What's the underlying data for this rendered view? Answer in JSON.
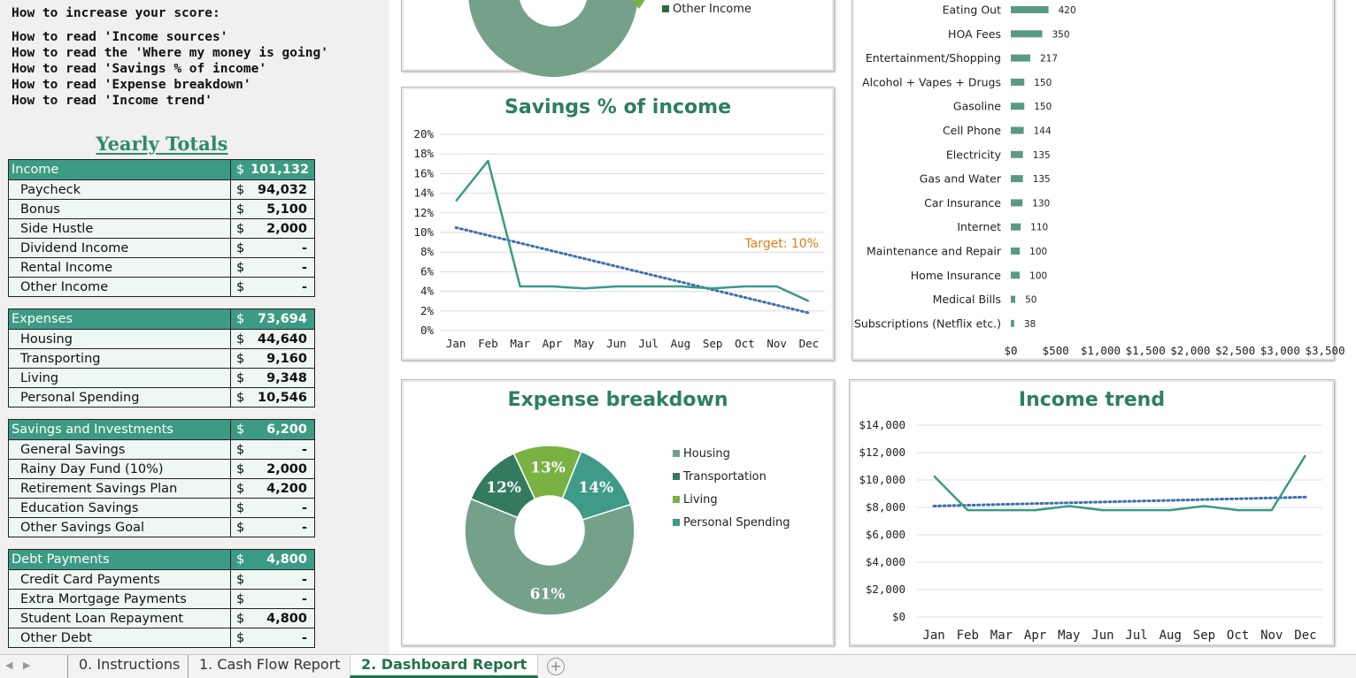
{
  "help_links": {
    "heading": "How to increase your score:",
    "items": [
      "How to read 'Income sources'",
      "How to read the 'Where my money is going'",
      "How to read 'Savings % of income'",
      "How to read 'Expense breakdown'",
      "How to read 'Income trend'"
    ]
  },
  "yearly_totals": {
    "title": "Yearly Totals",
    "sections": [
      {
        "name": "Income",
        "total": "101,132",
        "rows": [
          {
            "label": "Paycheck",
            "value": "94,032"
          },
          {
            "label": "Bonus",
            "value": "5,100"
          },
          {
            "label": "Side Hustle",
            "value": "2,000"
          },
          {
            "label": "Dividend Income",
            "value": "-"
          },
          {
            "label": "Rental Income",
            "value": "-"
          },
          {
            "label": "Other Income",
            "value": "-"
          }
        ]
      },
      {
        "name": "Expenses",
        "total": "73,694",
        "rows": [
          {
            "label": "Housing",
            "value": "44,640"
          },
          {
            "label": "Transporting",
            "value": "9,160"
          },
          {
            "label": "Living",
            "value": "9,348"
          },
          {
            "label": "Personal Spending",
            "value": "10,546"
          }
        ]
      },
      {
        "name": "Savings and Investments",
        "total": "6,200",
        "rows": [
          {
            "label": "General Savings",
            "value": "-"
          },
          {
            "label": "Rainy Day Fund (10%)",
            "value": "2,000"
          },
          {
            "label": "Retirement Savings Plan",
            "value": "4,200"
          },
          {
            "label": "Education Savings",
            "value": "-"
          },
          {
            "label": "Other Savings Goal",
            "value": "-"
          }
        ]
      },
      {
        "name": "Debt Payments",
        "total": "4,800",
        "rows": [
          {
            "label": "Credit Card Payments",
            "value": "-"
          },
          {
            "label": "Extra Mortgage Payments",
            "value": "-"
          },
          {
            "label": "Student Loan Repayment",
            "value": "4,800"
          },
          {
            "label": "Other Debt",
            "value": "-"
          }
        ]
      }
    ],
    "currency_symbol": "$"
  },
  "income_sources_partial": {
    "legend_visible": "Other Income"
  },
  "colors": {
    "housing": "#75a18b",
    "transportation": "#347a5e",
    "living": "#7ab143",
    "personal": "#3f9a87",
    "line": "#3a9a86",
    "trend": "#3e6fb0",
    "target": "#e07b1f",
    "bar": "#5a9a83"
  },
  "tabs": {
    "items": [
      "0. Instructions",
      "1. Cash Flow Report",
      "2. Dashboard Report"
    ],
    "active": "2. Dashboard Report"
  },
  "chart_data": [
    {
      "type": "donut",
      "title": "",
      "note": "partially visible (cropped at top)",
      "legend": [
        "Other Income"
      ]
    },
    {
      "type": "line",
      "title": "Savings % of income",
      "categories": [
        "Jan",
        "Feb",
        "Mar",
        "Apr",
        "May",
        "Jun",
        "Jul",
        "Aug",
        "Sep",
        "Oct",
        "Nov",
        "Dec"
      ],
      "series": [
        {
          "values": [
            13.2,
            17.3,
            4.5,
            4.5,
            4.3,
            4.5,
            4.5,
            4.5,
            4.3,
            4.5,
            4.5,
            3.0
          ]
        }
      ],
      "trendline": {
        "start": 10.5,
        "end": 1.8
      },
      "annotation": "Target: 10%",
      "y_ticks": [
        "0%",
        "2%",
        "4%",
        "6%",
        "8%",
        "10%",
        "12%",
        "14%",
        "16%",
        "18%",
        "20%"
      ],
      "ylim": [
        0,
        20
      ]
    },
    {
      "type": "bar",
      "orientation": "horizontal",
      "title": "",
      "categories": [
        "Eating Out",
        "HOA Fees",
        "Entertainment/Shopping",
        "Alcohol + Vapes + Drugs",
        "Gasoline",
        "Cell Phone",
        "Electricity",
        "Gas and Water",
        "Car Insurance",
        "Internet",
        "Maintenance and Repair",
        "Home Insurance",
        "Medical Bills",
        "Subscriptions (Netflix etc.)"
      ],
      "values": [
        420,
        350,
        217,
        150,
        150,
        144,
        135,
        135,
        130,
        110,
        100,
        100,
        50,
        38
      ],
      "x_ticks": [
        "$0",
        "$500",
        "$1,000",
        "$1,500",
        "$2,000",
        "$2,500",
        "$3,000",
        "$3,500"
      ],
      "xlim": [
        0,
        3500
      ]
    },
    {
      "type": "donut",
      "title": "Expense breakdown",
      "categories": [
        "Housing",
        "Transportation",
        "Living",
        "Personal Spending"
      ],
      "values": [
        61,
        12,
        13,
        14
      ],
      "labels": [
        "61%",
        "12%",
        "13%",
        "14%"
      ]
    },
    {
      "type": "line",
      "title": "Income trend",
      "categories": [
        "Jan",
        "Feb",
        "Mar",
        "Apr",
        "May",
        "Jun",
        "Jul",
        "Aug",
        "Sep",
        "Oct",
        "Nov",
        "Dec"
      ],
      "series": [
        {
          "values": [
            10300,
            7800,
            7800,
            7800,
            8100,
            7800,
            7800,
            7800,
            8100,
            7800,
            7800,
            11800
          ]
        }
      ],
      "trendline": {
        "start": 8100,
        "end": 8750
      },
      "y_ticks": [
        "$0",
        "$2,000",
        "$4,000",
        "$6,000",
        "$8,000",
        "$10,000",
        "$12,000",
        "$14,000"
      ],
      "ylim": [
        0,
        14000
      ]
    }
  ]
}
